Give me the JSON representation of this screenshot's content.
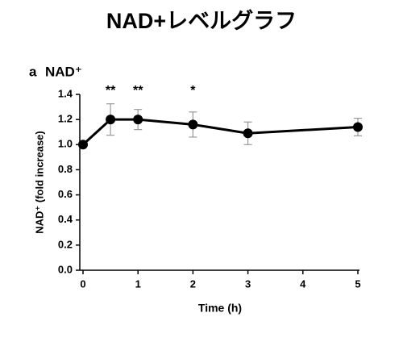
{
  "chart_data": {
    "type": "line",
    "title": "NAD+レベルグラフ",
    "panel_label": "a",
    "subtitle": "NAD⁺",
    "x_label": "Time (h)",
    "y_label": "NAD⁺ (fold increase)",
    "x": [
      0,
      0.5,
      1,
      2,
      3,
      5
    ],
    "values": [
      1.0,
      1.2,
      1.2,
      1.16,
      1.09,
      1.14
    ],
    "errors": [
      0,
      0.125,
      0.08,
      0.1,
      0.09,
      0.07
    ],
    "color": "#000000",
    "error_color": "#999999",
    "xlim": [
      0,
      5
    ],
    "xticks": [
      0,
      1,
      2,
      3,
      4,
      5
    ],
    "ylim": [
      0,
      1.4
    ],
    "yticks": [
      {
        "value": 0,
        "label": "0.0"
      },
      {
        "value": 0.2,
        "label": "0.2"
      },
      {
        "value": 0.4,
        "label": "0.4"
      },
      {
        "value": 0.6,
        "label": "0.6"
      },
      {
        "value": 0.8,
        "label": "0.8"
      },
      {
        "value": 1.0,
        "label": "1.0"
      },
      {
        "value": 1.2,
        "label": "1.2"
      },
      {
        "value": 1.4,
        "label": "1.4"
      }
    ],
    "annotations": [
      {
        "x": 0.5,
        "text": "**"
      },
      {
        "x": 1,
        "text": "**"
      },
      {
        "x": 2,
        "text": "*"
      }
    ],
    "grid": false
  }
}
